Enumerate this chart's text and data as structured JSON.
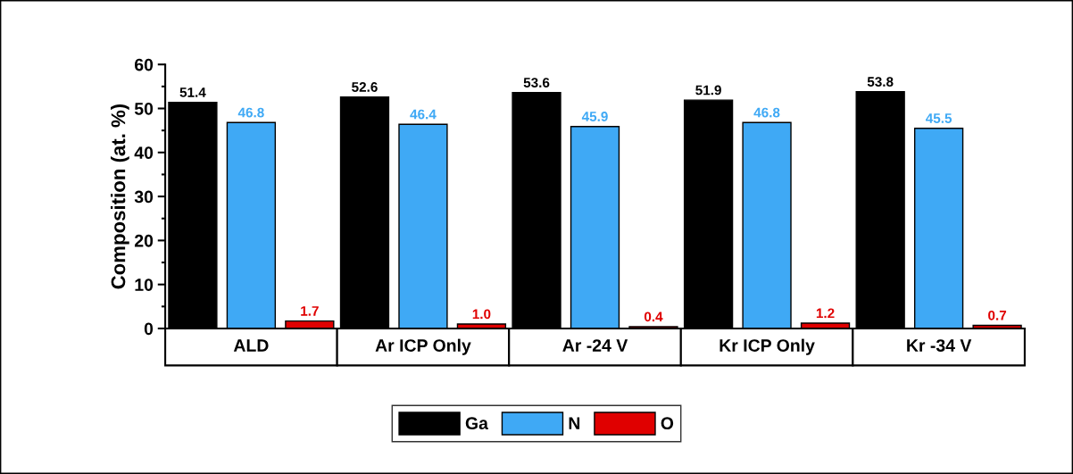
{
  "chart_data": {
    "type": "bar",
    "ylabel": "Composition (at. %)",
    "categories": [
      "ALD",
      "Ar ICP Only",
      "Ar -24 V",
      "Kr ICP Only",
      "Kr -34 V"
    ],
    "series": [
      {
        "name": "Ga",
        "color": "#000000",
        "values": [
          51.4,
          52.6,
          53.6,
          51.9,
          53.8
        ],
        "value_labels": [
          "51.4",
          "52.6",
          "53.6",
          "51.9",
          "53.8"
        ]
      },
      {
        "name": "N",
        "color": "#3fa9f5",
        "values": [
          46.8,
          46.4,
          45.9,
          46.8,
          45.5
        ],
        "value_labels": [
          "46.8",
          "46.4",
          "45.9",
          "46.8",
          "45.5"
        ]
      },
      {
        "name": "O",
        "color": "#e00000",
        "values": [
          1.7,
          1.0,
          0.4,
          1.2,
          0.7
        ],
        "value_labels": [
          "1.7",
          "1.0",
          "0.4",
          "1.2",
          "0.7"
        ]
      }
    ],
    "ylim": [
      0,
      60
    ],
    "yticks": [
      0,
      10,
      20,
      30,
      40,
      50,
      60
    ],
    "grid": false,
    "legend": "bottom"
  }
}
